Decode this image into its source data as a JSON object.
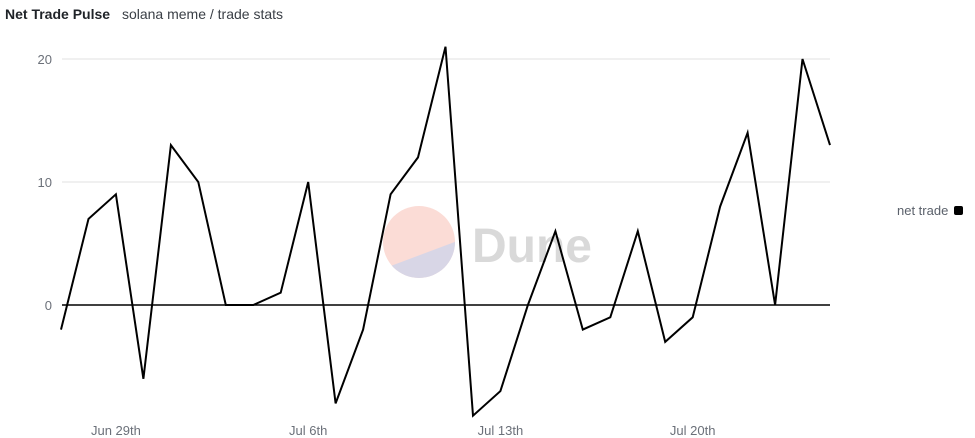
{
  "header": {
    "title": "Net Trade Pulse",
    "subtitle": "solana meme / trade stats"
  },
  "watermark": {
    "text": "Dune",
    "colors": {
      "top": "#fbdcd6",
      "bottom": "#d8d6e6",
      "text": "#d9d9d9"
    }
  },
  "legend": {
    "items": [
      {
        "label": "net trade",
        "color": "#000000"
      }
    ]
  },
  "chart_data": {
    "type": "line",
    "title": "Net Trade Pulse",
    "subtitle": "solana meme / trade stats",
    "xlabel": "",
    "ylabel": "",
    "ylim": [
      -9,
      21
    ],
    "yticks": [
      0,
      10,
      20
    ],
    "xtick_labels": [
      {
        "label": "Jun 29th",
        "index": 2
      },
      {
        "label": "Jul 6th",
        "index": 9
      },
      {
        "label": "Jul 13th",
        "index": 16
      },
      {
        "label": "Jul 20th",
        "index": 23
      }
    ],
    "x": [
      "Jun 27",
      "Jun 28",
      "Jun 29",
      "Jun 30",
      "Jul 1",
      "Jul 2",
      "Jul 3",
      "Jul 4",
      "Jul 5",
      "Jul 6",
      "Jul 7",
      "Jul 8",
      "Jul 9",
      "Jul 10",
      "Jul 11",
      "Jul 12",
      "Jul 13",
      "Jul 14",
      "Jul 15",
      "Jul 16",
      "Jul 17",
      "Jul 18",
      "Jul 19",
      "Jul 20",
      "Jul 21",
      "Jul 22",
      "Jul 23",
      "Jul 24",
      "Jul 25"
    ],
    "series": [
      {
        "name": "net trade",
        "color": "#000000",
        "values": [
          -2,
          7,
          9,
          -6,
          13,
          10,
          0,
          0,
          1,
          10,
          -8,
          -2,
          9,
          12,
          21,
          -9,
          -7,
          0,
          6,
          -2,
          -1,
          6,
          -3,
          -1,
          8,
          14,
          0,
          20,
          13
        ]
      }
    ],
    "grid": true,
    "legend_position": "right"
  }
}
